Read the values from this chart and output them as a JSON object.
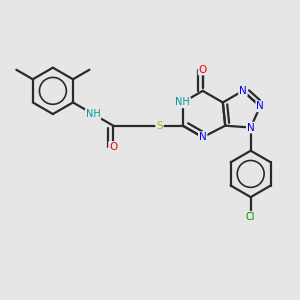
{
  "background_color": "#e6e6e6",
  "bond_color": "#2a2a2a",
  "bond_width": 1.6,
  "colors": {
    "N": "#0000ee",
    "O": "#ee0000",
    "S": "#bbaa00",
    "Cl": "#008800",
    "NH": "#009999",
    "C": "#2a2a2a"
  }
}
